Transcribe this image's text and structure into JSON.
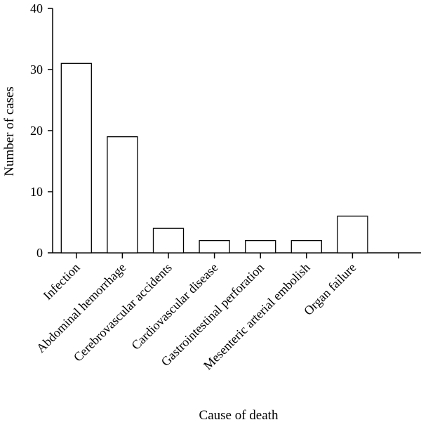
{
  "chart_data": {
    "type": "bar",
    "categories": [
      "Infection",
      "Abdominal hemorrhage",
      "Cerebrovascular accidents",
      "Cardiovascular disease",
      "Gastrointestinal perforation",
      "Mesenteric arterial embolish",
      "Organ failure",
      ""
    ],
    "values": [
      31,
      19,
      4,
      2,
      2,
      2,
      6,
      null
    ],
    "xlabel": "Cause of death",
    "ylabel": "Number of cases",
    "ylim": [
      0,
      40
    ],
    "yticks": [
      0,
      10,
      20,
      30,
      40
    ],
    "grid": false
  }
}
